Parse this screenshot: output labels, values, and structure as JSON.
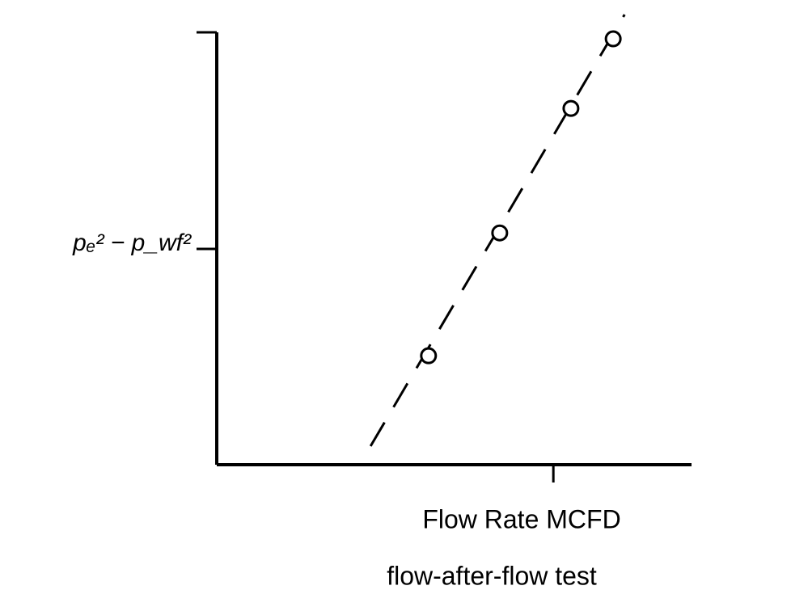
{
  "chart_data": {
    "type": "scatter",
    "x_label": "Flow Rate MCFD",
    "caption": "flow-after-flow test",
    "xlim": [
      0,
      1
    ],
    "ylim": [
      0,
      1
    ],
    "xticks": [
      0.709
    ],
    "yticks": [
      {
        "value": 0.499,
        "label": "pₑ² − p_wf²"
      },
      1
    ],
    "series": [
      {
        "x": [
          0.446,
          0.596,
          0.746,
          0.835
        ],
        "values": [
          0.252,
          0.536,
          0.824,
          0.985
        ],
        "color": "#000"
      }
    ],
    "fit_line": {
      "x": [
        0.324,
        0.859
      ],
      "y": [
        0.043,
        1.041
      ],
      "dashed": true,
      "color": "#000"
    }
  }
}
